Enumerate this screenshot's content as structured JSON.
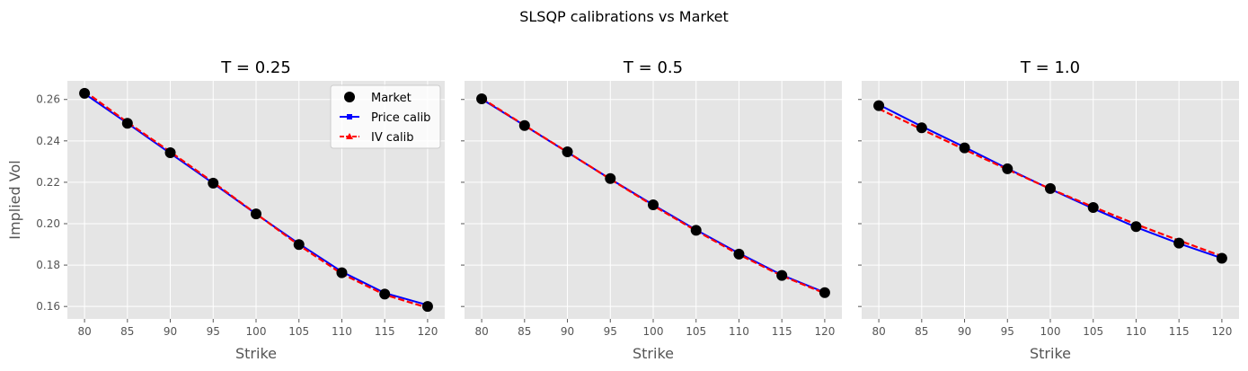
{
  "suptitle": "SLSQP calibrations vs Market",
  "colors": {
    "panel_bg": "#e5e5e5",
    "grid": "#ffffff",
    "market": "#000000",
    "price_calib": "#0000ff",
    "iv_calib": "#ff0000",
    "tick_text": "#555555",
    "label_text": "#555555",
    "title_text": "#000000"
  },
  "legend": {
    "location": "top-right",
    "entries": [
      {
        "name": "Market",
        "marker": "circle"
      },
      {
        "name": "Price calib",
        "marker": "square",
        "line": "solid"
      },
      {
        "name": "IV calib",
        "marker": "triangle",
        "line": "dashed"
      }
    ]
  },
  "chart_data": [
    {
      "type": "line",
      "title": "T = 0.25",
      "xlabel": "Strike",
      "ylabel": "Implied Vol",
      "x": [
        80,
        85,
        90,
        95,
        100,
        105,
        110,
        115,
        120
      ],
      "xlim": [
        78,
        122
      ],
      "ylim": [
        0.154,
        0.269
      ],
      "xticks": [
        80,
        85,
        90,
        95,
        100,
        105,
        110,
        115,
        120
      ],
      "yticks": [
        0.16,
        0.18,
        0.2,
        0.22,
        0.24,
        0.26
      ],
      "ytick_labels": [
        "0.16",
        "0.18",
        "0.20",
        "0.22",
        "0.24",
        "0.26"
      ],
      "show_ytick_labels": true,
      "grid": true,
      "series": [
        {
          "name": "Market",
          "values": [
            0.263,
            0.2485,
            0.2343,
            0.2196,
            0.2047,
            0.1899,
            0.1763,
            0.166,
            0.16
          ]
        },
        {
          "name": "Price calib",
          "values": [
            0.2628,
            0.2485,
            0.234,
            0.2195,
            0.2047,
            0.1903,
            0.1768,
            0.1665,
            0.1607
          ]
        },
        {
          "name": "IV calib",
          "values": [
            0.264,
            0.249,
            0.2347,
            0.22,
            0.2048,
            0.1896,
            0.1758,
            0.1657,
            0.1594
          ]
        }
      ]
    },
    {
      "type": "line",
      "title": "T = 0.5",
      "xlabel": "Strike",
      "ylabel": "",
      "x": [
        80,
        85,
        90,
        95,
        100,
        105,
        110,
        115,
        120
      ],
      "xlim": [
        78,
        122
      ],
      "ylim": [
        0.154,
        0.269
      ],
      "xticks": [
        80,
        85,
        90,
        95,
        100,
        105,
        110,
        115,
        120
      ],
      "yticks": [
        0.16,
        0.18,
        0.2,
        0.22,
        0.24,
        0.26
      ],
      "ytick_labels": [],
      "show_ytick_labels": false,
      "grid": true,
      "series": [
        {
          "name": "Market",
          "values": [
            0.2603,
            0.2474,
            0.2347,
            0.2218,
            0.2091,
            0.1968,
            0.1853,
            0.175,
            0.1667
          ]
        },
        {
          "name": "Price calib",
          "values": [
            0.2602,
            0.2474,
            0.2345,
            0.2216,
            0.2091,
            0.197,
            0.1857,
            0.1752,
            0.1668
          ]
        },
        {
          "name": "IV calib",
          "values": [
            0.2606,
            0.2475,
            0.2346,
            0.2215,
            0.2087,
            0.1966,
            0.1851,
            0.1748,
            0.1664
          ]
        }
      ]
    },
    {
      "type": "line",
      "title": "T = 1.0",
      "xlabel": "Strike",
      "ylabel": "",
      "x": [
        80,
        85,
        90,
        95,
        100,
        105,
        110,
        115,
        120
      ],
      "xlim": [
        78,
        122
      ],
      "ylim": [
        0.154,
        0.269
      ],
      "xticks": [
        80,
        85,
        90,
        95,
        100,
        105,
        110,
        115,
        120
      ],
      "yticks": [
        0.16,
        0.18,
        0.2,
        0.22,
        0.24,
        0.26
      ],
      "ytick_labels": [],
      "show_ytick_labels": false,
      "grid": true,
      "series": [
        {
          "name": "Market",
          "values": [
            0.257,
            0.2463,
            0.2366,
            0.2265,
            0.217,
            0.2078,
            0.1986,
            0.1906,
            0.1833
          ]
        },
        {
          "name": "Price calib",
          "values": [
            0.2575,
            0.247,
            0.237,
            0.2266,
            0.2167,
            0.2073,
            0.1983,
            0.1904,
            0.1833
          ]
        },
        {
          "name": "IV calib",
          "values": [
            0.2555,
            0.2456,
            0.2358,
            0.2262,
            0.2168,
            0.2081,
            0.1997,
            0.1919,
            0.1843
          ]
        }
      ]
    }
  ]
}
